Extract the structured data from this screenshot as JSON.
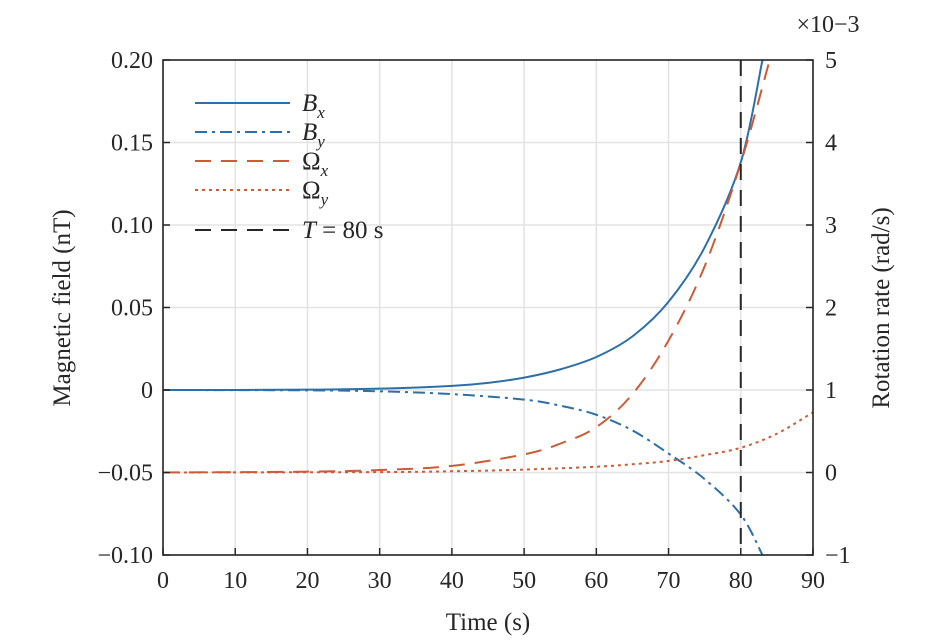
{
  "chart_data": {
    "type": "line",
    "xlabel": "Time (s)",
    "ylabel_left": "Magnetic field (nT)",
    "ylabel_right": "Rotation rate (rad/s)",
    "right_exponent_label": "×10−3",
    "xlim": [
      0,
      90
    ],
    "ylim_left": [
      -0.1,
      0.2
    ],
    "ylim_right": [
      -1,
      5
    ],
    "right_axis_scale": 0.001,
    "grid": true,
    "legend_position": "top-left",
    "x_ticks": [
      "0",
      "10",
      "20",
      "30",
      "40",
      "50",
      "60",
      "70",
      "80",
      "90"
    ],
    "y_left_ticks": [
      "−0.10",
      "−0.05",
      "0",
      "0.05",
      "0.10",
      "0.15",
      "0.20"
    ],
    "y_right_ticks": [
      "−1",
      "0",
      "1",
      "2",
      "3",
      "4",
      "5"
    ],
    "vertical_line": {
      "x": 80,
      "label_italic": "T",
      "label_rest": " = 80 s",
      "color": "#262626"
    },
    "series": [
      {
        "name": "B",
        "subscript": "x",
        "axis": "left",
        "style": "solid",
        "color": "#2e6fa7",
        "x": [
          0,
          10,
          20,
          30,
          40,
          45,
          50,
          55,
          60,
          65,
          70,
          75,
          80,
          83
        ],
        "y": [
          0,
          0,
          0.0002,
          0.0008,
          0.0025,
          0.0043,
          0.0075,
          0.0125,
          0.02,
          0.0325,
          0.0535,
          0.0865,
          0.138,
          0.2
        ]
      },
      {
        "name": "B",
        "subscript": "y",
        "axis": "left",
        "style": "dashdot",
        "color": "#2e6fa7",
        "x": [
          0,
          20,
          30,
          40,
          50,
          55,
          60,
          65,
          70,
          75,
          80,
          83
        ],
        "y": [
          0,
          -0.0002,
          -0.0008,
          -0.0025,
          -0.0058,
          -0.0095,
          -0.015,
          -0.0245,
          -0.0385,
          -0.054,
          -0.0755,
          -0.1
        ]
      },
      {
        "name": "Ω",
        "subscript": "x",
        "axis": "right",
        "style": "dashed",
        "color": "#cd5b36",
        "x": [
          0,
          20,
          30,
          40,
          50,
          55,
          60,
          65,
          70,
          75,
          80,
          84
        ],
        "y": [
          0,
          0.01,
          0.03,
          0.08,
          0.22,
          0.35,
          0.55,
          0.95,
          1.6,
          2.5,
          3.75,
          5.0
        ]
      },
      {
        "name": "Ω",
        "subscript": "y",
        "axis": "right",
        "style": "dotted",
        "color": "#cd5b36",
        "x": [
          0,
          30,
          40,
          50,
          60,
          65,
          70,
          75,
          80,
          85,
          90
        ],
        "y": [
          0,
          0.005,
          0.015,
          0.035,
          0.07,
          0.1,
          0.14,
          0.21,
          0.3,
          0.47,
          0.73
        ]
      }
    ]
  }
}
